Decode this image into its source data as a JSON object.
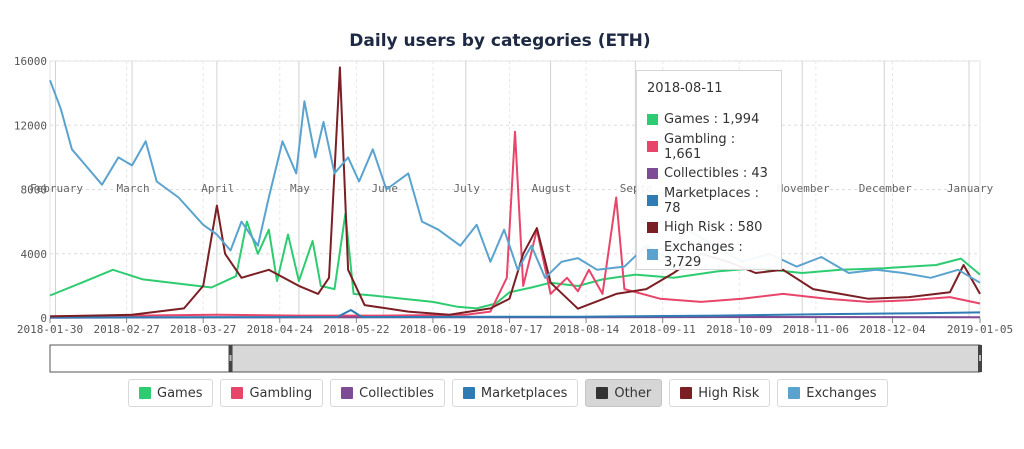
{
  "chart_data": {
    "type": "line",
    "title": "Daily users by categories (ETH)",
    "ylim": [
      0,
      16000
    ],
    "y_ticks": [
      "0",
      "4000",
      "8000",
      "12000",
      "16000"
    ],
    "x_range": [
      "2018-01-30",
      "2019-01-05"
    ],
    "x_ticks": [
      "2018-01-30",
      "2018-02-27",
      "2018-03-27",
      "2018-04-24",
      "2018-05-22",
      "2018-06-19",
      "2018-07-17",
      "2018-08-14",
      "2018-09-11",
      "2018-10-09",
      "2018-11-06",
      "2018-12-04",
      "2019-01-05"
    ],
    "month_labels": [
      {
        "label": "February",
        "date": "2018-02-01"
      },
      {
        "label": "March",
        "date": "2018-03-01"
      },
      {
        "label": "April",
        "date": "2018-04-01"
      },
      {
        "label": "May",
        "date": "2018-05-01"
      },
      {
        "label": "June",
        "date": "2018-06-01"
      },
      {
        "label": "July",
        "date": "2018-07-01"
      },
      {
        "label": "August",
        "date": "2018-08-01"
      },
      {
        "label": "Septe",
        "date": "2018-09-01"
      },
      {
        "label": "November",
        "date": "2018-11-01"
      },
      {
        "label": "December",
        "date": "2018-12-01"
      },
      {
        "label": "January",
        "date": "2019-01-01"
      }
    ],
    "grid": true,
    "legend_position": "bottom",
    "series": [
      {
        "name": "Games",
        "color": "#2ecc71",
        "visible": true,
        "points": [
          [
            "2018-01-30",
            1400
          ],
          [
            "2018-02-12",
            2300
          ],
          [
            "2018-02-22",
            3000
          ],
          [
            "2018-03-05",
            2400
          ],
          [
            "2018-03-20",
            2100
          ],
          [
            "2018-03-30",
            1900
          ],
          [
            "2018-04-08",
            2600
          ],
          [
            "2018-04-12",
            6000
          ],
          [
            "2018-04-16",
            4000
          ],
          [
            "2018-04-20",
            5500
          ],
          [
            "2018-04-23",
            2300
          ],
          [
            "2018-04-27",
            5200
          ],
          [
            "2018-05-01",
            2300
          ],
          [
            "2018-05-06",
            4800
          ],
          [
            "2018-05-09",
            2000
          ],
          [
            "2018-05-14",
            1800
          ],
          [
            "2018-05-18",
            6500
          ],
          [
            "2018-05-21",
            1500
          ],
          [
            "2018-05-28",
            1400
          ],
          [
            "2018-06-08",
            1200
          ],
          [
            "2018-06-19",
            1000
          ],
          [
            "2018-06-28",
            700
          ],
          [
            "2018-07-05",
            600
          ],
          [
            "2018-07-12",
            900
          ],
          [
            "2018-07-17",
            1600
          ],
          [
            "2018-07-25",
            1900
          ],
          [
            "2018-08-01",
            2200
          ],
          [
            "2018-08-11",
            1994
          ],
          [
            "2018-08-20",
            2400
          ],
          [
            "2018-09-01",
            2700
          ],
          [
            "2018-09-15",
            2500
          ],
          [
            "2018-10-01",
            2900
          ],
          [
            "2018-10-15",
            3100
          ],
          [
            "2018-11-01",
            2800
          ],
          [
            "2018-11-15",
            3000
          ],
          [
            "2018-12-01",
            3100
          ],
          [
            "2018-12-20",
            3300
          ],
          [
            "2018-12-29",
            3700
          ],
          [
            "2019-01-05",
            2700
          ]
        ]
      },
      {
        "name": "Gambling",
        "color": "#e8456a",
        "visible": true,
        "points": [
          [
            "2018-01-30",
            100
          ],
          [
            "2018-03-01",
            150
          ],
          [
            "2018-04-01",
            200
          ],
          [
            "2018-05-01",
            150
          ],
          [
            "2018-06-01",
            150
          ],
          [
            "2018-07-01",
            200
          ],
          [
            "2018-07-10",
            400
          ],
          [
            "2018-07-16",
            2500
          ],
          [
            "2018-07-19",
            11600
          ],
          [
            "2018-07-22",
            2000
          ],
          [
            "2018-07-27",
            5500
          ],
          [
            "2018-08-01",
            1500
          ],
          [
            "2018-08-07",
            2500
          ],
          [
            "2018-08-11",
            1661
          ],
          [
            "2018-08-15",
            3000
          ],
          [
            "2018-08-20",
            1500
          ],
          [
            "2018-08-25",
            7500
          ],
          [
            "2018-08-28",
            1800
          ],
          [
            "2018-09-10",
            1200
          ],
          [
            "2018-09-25",
            1000
          ],
          [
            "2018-10-10",
            1200
          ],
          [
            "2018-10-25",
            1500
          ],
          [
            "2018-11-10",
            1200
          ],
          [
            "2018-11-25",
            1000
          ],
          [
            "2018-12-10",
            1100
          ],
          [
            "2018-12-25",
            1300
          ],
          [
            "2019-01-05",
            900
          ]
        ]
      },
      {
        "name": "Collectibles",
        "color": "#7d4c94",
        "visible": true,
        "points": [
          [
            "2018-01-30",
            20
          ],
          [
            "2018-04-01",
            40
          ],
          [
            "2018-07-01",
            50
          ],
          [
            "2018-08-11",
            43
          ],
          [
            "2018-10-01",
            60
          ],
          [
            "2019-01-05",
            50
          ]
        ]
      },
      {
        "name": "Marketplaces",
        "color": "#2f7bb4",
        "visible": true,
        "points": [
          [
            "2018-01-30",
            30
          ],
          [
            "2018-05-15",
            60
          ],
          [
            "2018-05-20",
            500
          ],
          [
            "2018-05-24",
            60
          ],
          [
            "2018-08-11",
            78
          ],
          [
            "2018-10-01",
            150
          ],
          [
            "2018-11-15",
            250
          ],
          [
            "2018-12-15",
            300
          ],
          [
            "2019-01-05",
            350
          ]
        ]
      },
      {
        "name": "Other",
        "color": "#333333",
        "visible": false,
        "points": []
      },
      {
        "name": "High Risk",
        "color": "#7b1f24",
        "visible": true,
        "points": [
          [
            "2018-01-30",
            100
          ],
          [
            "2018-03-01",
            200
          ],
          [
            "2018-03-20",
            600
          ],
          [
            "2018-03-27",
            2000
          ],
          [
            "2018-04-01",
            7000
          ],
          [
            "2018-04-04",
            4000
          ],
          [
            "2018-04-10",
            2500
          ],
          [
            "2018-04-20",
            3000
          ],
          [
            "2018-05-01",
            2000
          ],
          [
            "2018-05-08",
            1500
          ],
          [
            "2018-05-12",
            2500
          ],
          [
            "2018-05-16",
            15600
          ],
          [
            "2018-05-19",
            3000
          ],
          [
            "2018-05-25",
            800
          ],
          [
            "2018-06-10",
            400
          ],
          [
            "2018-06-25",
            200
          ],
          [
            "2018-07-10",
            600
          ],
          [
            "2018-07-17",
            1200
          ],
          [
            "2018-07-22",
            4000
          ],
          [
            "2018-07-27",
            5600
          ],
          [
            "2018-08-01",
            2200
          ],
          [
            "2018-08-11",
            580
          ],
          [
            "2018-08-25",
            1500
          ],
          [
            "2018-09-05",
            1800
          ],
          [
            "2018-09-15",
            2800
          ],
          [
            "2018-09-25",
            4000
          ],
          [
            "2018-10-05",
            3500
          ],
          [
            "2018-10-15",
            2800
          ],
          [
            "2018-10-25",
            3000
          ],
          [
            "2018-11-05",
            1800
          ],
          [
            "2018-11-15",
            1500
          ],
          [
            "2018-11-25",
            1200
          ],
          [
            "2018-12-10",
            1300
          ],
          [
            "2018-12-25",
            1600
          ],
          [
            "2018-12-30",
            3300
          ],
          [
            "2019-01-05",
            1500
          ]
        ]
      },
      {
        "name": "Exchanges",
        "color": "#5ba3cf",
        "visible": true,
        "points": [
          [
            "2018-01-30",
            14800
          ],
          [
            "2018-02-03",
            13000
          ],
          [
            "2018-02-07",
            10500
          ],
          [
            "2018-02-12",
            9500
          ],
          [
            "2018-02-18",
            8300
          ],
          [
            "2018-02-24",
            10000
          ],
          [
            "2018-03-01",
            9500
          ],
          [
            "2018-03-06",
            11000
          ],
          [
            "2018-03-10",
            8500
          ],
          [
            "2018-03-18",
            7500
          ],
          [
            "2018-03-27",
            5800
          ],
          [
            "2018-04-01",
            5200
          ],
          [
            "2018-04-06",
            4200
          ],
          [
            "2018-04-10",
            6000
          ],
          [
            "2018-04-16",
            4500
          ],
          [
            "2018-04-20",
            7500
          ],
          [
            "2018-04-25",
            11000
          ],
          [
            "2018-04-30",
            9000
          ],
          [
            "2018-05-03",
            13500
          ],
          [
            "2018-05-07",
            10000
          ],
          [
            "2018-05-10",
            12200
          ],
          [
            "2018-05-14",
            9000
          ],
          [
            "2018-05-19",
            10000
          ],
          [
            "2018-05-23",
            8500
          ],
          [
            "2018-05-28",
            10500
          ],
          [
            "2018-06-02",
            8000
          ],
          [
            "2018-06-10",
            9000
          ],
          [
            "2018-06-15",
            6000
          ],
          [
            "2018-06-21",
            5500
          ],
          [
            "2018-06-29",
            4500
          ],
          [
            "2018-07-05",
            5800
          ],
          [
            "2018-07-10",
            3500
          ],
          [
            "2018-07-15",
            5500
          ],
          [
            "2018-07-20",
            3000
          ],
          [
            "2018-07-25",
            4500
          ],
          [
            "2018-07-30",
            2500
          ],
          [
            "2018-08-05",
            3500
          ],
          [
            "2018-08-11",
            3729
          ],
          [
            "2018-08-18",
            3000
          ],
          [
            "2018-08-28",
            3200
          ],
          [
            "2018-09-05",
            4500
          ],
          [
            "2018-09-12",
            3800
          ],
          [
            "2018-09-20",
            5500
          ],
          [
            "2018-09-30",
            4500
          ],
          [
            "2018-10-10",
            3500
          ],
          [
            "2018-10-20",
            4000
          ],
          [
            "2018-10-30",
            3200
          ],
          [
            "2018-11-08",
            3800
          ],
          [
            "2018-11-18",
            2800
          ],
          [
            "2018-11-28",
            3000
          ],
          [
            "2018-12-08",
            2800
          ],
          [
            "2018-12-18",
            2500
          ],
          [
            "2018-12-28",
            3000
          ],
          [
            "2019-01-05",
            2200
          ]
        ]
      }
    ]
  },
  "tooltip": {
    "date": "2018-08-11",
    "rows": [
      {
        "label": "Games : 1,994",
        "color": "#2ecc71"
      },
      {
        "label": "Gambling : 1,661",
        "color": "#e8456a"
      },
      {
        "label": "Collectibles : 43",
        "color": "#7d4c94"
      },
      {
        "label": "Marketplaces : 78",
        "color": "#2f7bb4"
      },
      {
        "label": "High Risk : 580",
        "color": "#7b1f24"
      },
      {
        "label": "Exchanges : 3,729",
        "color": "#5ba3cf"
      }
    ]
  },
  "navigator": {
    "window_start": "2018-04-06",
    "window_end": "2019-01-05"
  },
  "legend": [
    {
      "label": "Games",
      "color": "#2ecc71",
      "active": true
    },
    {
      "label": "Gambling",
      "color": "#e8456a",
      "active": true
    },
    {
      "label": "Collectibles",
      "color": "#7d4c94",
      "active": true
    },
    {
      "label": "Marketplaces",
      "color": "#2f7bb4",
      "active": true
    },
    {
      "label": "Other",
      "color": "#333333",
      "active": false
    },
    {
      "label": "High Risk",
      "color": "#7b1f24",
      "active": true
    },
    {
      "label": "Exchanges",
      "color": "#5ba3cf",
      "active": true
    }
  ]
}
